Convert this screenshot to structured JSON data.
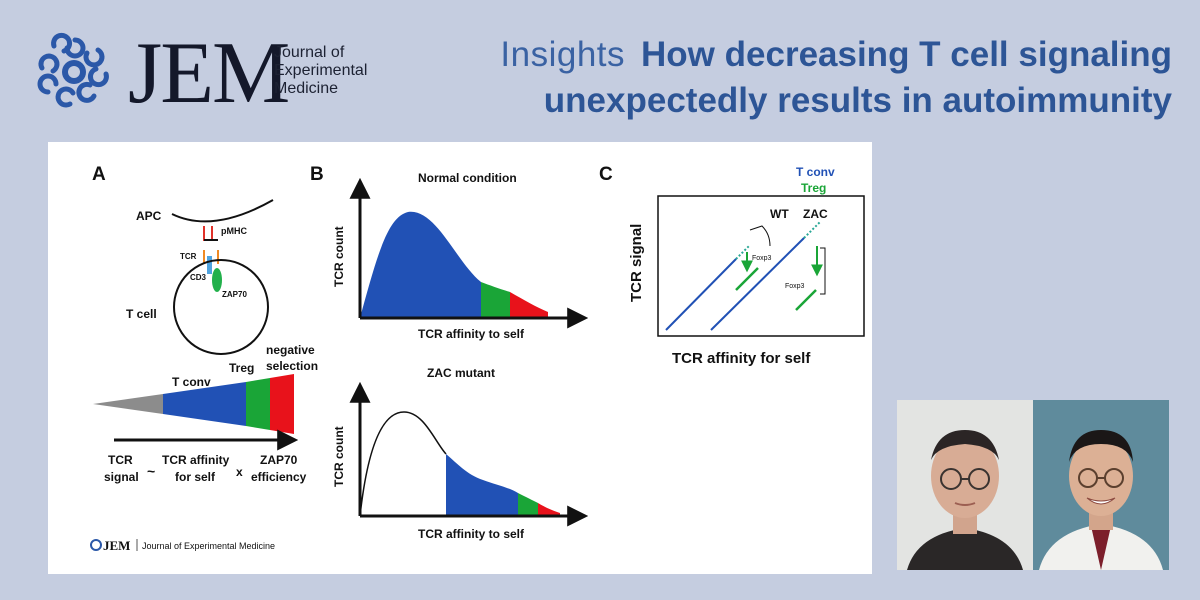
{
  "logo": {
    "jem": "JEM",
    "journal_line1": "Journal of",
    "journal_line2": "Experimental",
    "journal_line3": "Medicine"
  },
  "header": {
    "insights": "Insights",
    "headline_line1": "How decreasing T cell signaling",
    "headline_line2": "unexpectedly results in autoimmunity"
  },
  "figure": {
    "panel_a": {
      "letter": "A",
      "apc": "APC",
      "pmhc": "pMHC",
      "tcr": "TCR",
      "cd3": "CD3",
      "zap70": "ZAP70",
      "tcell": "T cell",
      "tconv": "T conv",
      "treg": "Treg",
      "negative1": "negative",
      "negative2": "selection",
      "tcr_signal_1": "TCR",
      "tcr_signal_2": "signal",
      "approx": "~",
      "affinity_1": "TCR affinity",
      "affinity_2": "for self",
      "times": "x",
      "zap_eff_1": "ZAP70",
      "zap_eff_2": "efficiency",
      "colors": {
        "gray": "#8c8c8c",
        "blue": "#2151b5",
        "green": "#1aa537",
        "red": "#e8121b"
      }
    },
    "panel_b": {
      "letter": "B",
      "top_title": "Normal condition",
      "top_ylabel": "TCR count",
      "top_xlabel": "TCR affinity to self",
      "bottom_title": "ZAC mutant",
      "bottom_ylabel": "TCR count",
      "bottom_xlabel": "TCR affinity to self"
    },
    "panel_c": {
      "letter": "C",
      "legend_tconv": "T conv",
      "legend_treg": "Treg",
      "wt": "WT",
      "zac": "ZAC",
      "foxp3_a": "Foxp3",
      "foxp3_b": "Foxp3",
      "ylabel": "TCR signal",
      "xlabel": "TCR affinity for self"
    },
    "footer_logo": "JEM",
    "footer_text": "Journal of Experimental Medicine"
  }
}
